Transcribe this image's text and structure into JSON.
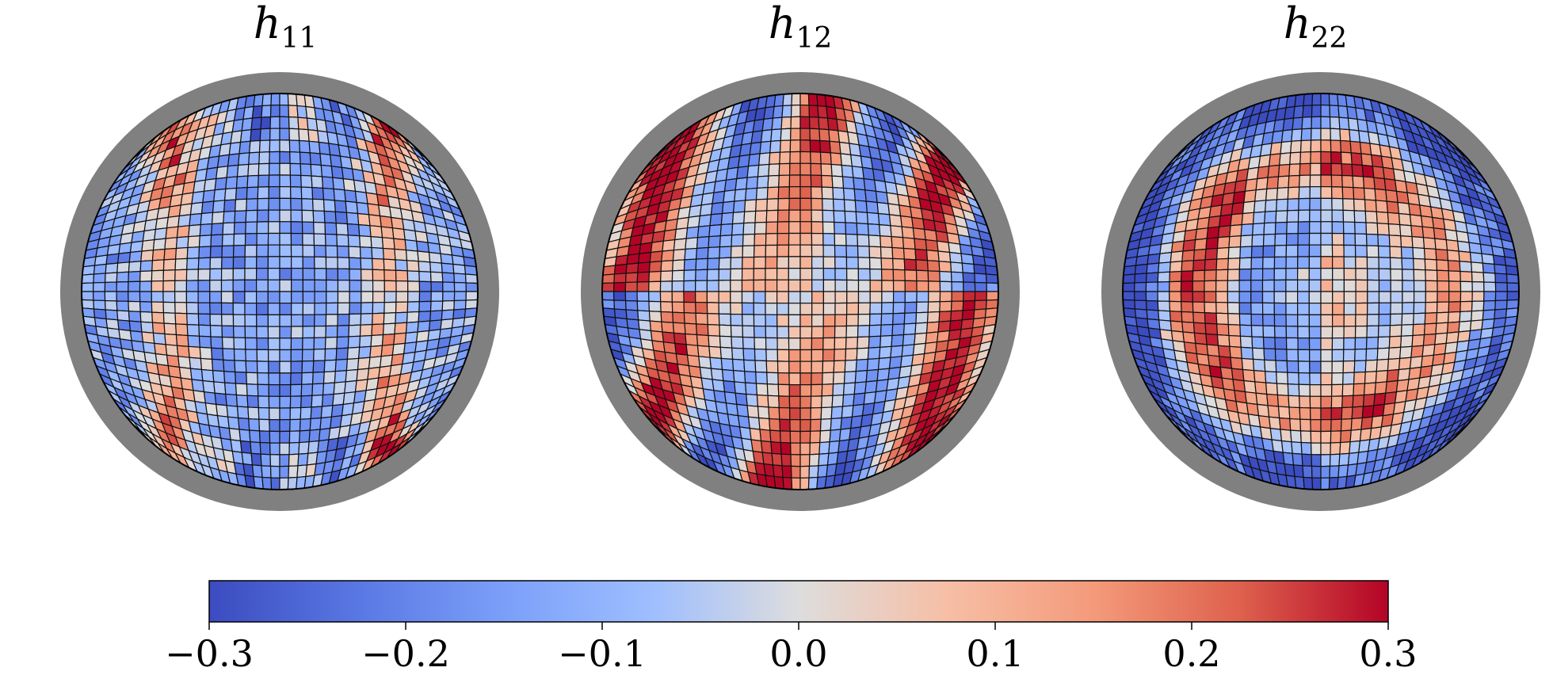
{
  "chart_data": {
    "type": "heatmap",
    "panels": [
      {
        "title_var": "h",
        "title_sub": "11"
      },
      {
        "title_var": "h",
        "title_sub": "12"
      },
      {
        "title_var": "h",
        "title_sub": "22"
      }
    ],
    "colorbar": {
      "colormap": "coolwarm",
      "vmin": -0.3,
      "vmax": 0.3,
      "ticks": [
        -0.3,
        -0.2,
        -0.1,
        0.0,
        0.1,
        0.2,
        0.3
      ],
      "tick_labels": [
        "−0.3",
        "−0.2",
        "−0.1",
        "0.0",
        "0.1",
        "0.2",
        "0.3"
      ],
      "orientation": "horizontal",
      "placement": "bottom"
    },
    "colors": {
      "ring": "#808080",
      "cell_edge": "#000000",
      "cmap_low": "#3b4cc0",
      "cmap_mid": "#dddddd",
      "cmap_high": "#b40426"
    }
  }
}
